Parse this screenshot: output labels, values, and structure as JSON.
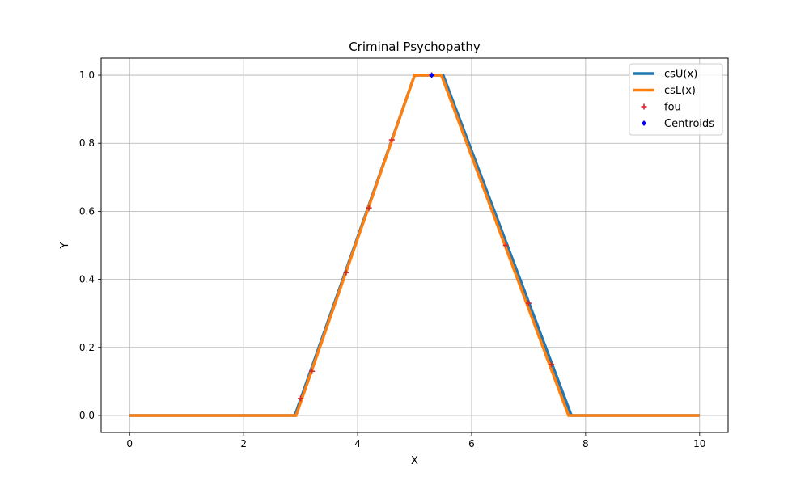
{
  "chart_data": {
    "type": "line",
    "title": "Criminal Psychopathy",
    "xlabel": "X",
    "ylabel": "Y",
    "xlim": [
      -0.5,
      10.5
    ],
    "ylim": [
      -0.05,
      1.05
    ],
    "xticks": [
      0,
      2,
      4,
      6,
      8,
      10
    ],
    "xtick_labels": [
      "0",
      "2",
      "4",
      "6",
      "8",
      "10"
    ],
    "yticks": [
      0.0,
      0.2,
      0.4,
      0.6,
      0.8,
      1.0
    ],
    "ytick_labels": [
      "0.0",
      "0.2",
      "0.4",
      "0.6",
      "0.8",
      "1.0"
    ],
    "grid": true,
    "legend_position": "top-right",
    "series": [
      {
        "name": "csU(x)",
        "kind": "line",
        "color": "#1f77b4",
        "x": [
          0,
          2.9,
          5.0,
          5.5,
          7.75,
          10
        ],
        "y": [
          0,
          0,
          1,
          1,
          0,
          0
        ]
      },
      {
        "name": "csL(x)",
        "kind": "line",
        "color": "#ff7f0e",
        "x": [
          0,
          2.92,
          5.0,
          5.47,
          7.7,
          10
        ],
        "y": [
          0,
          0,
          1,
          1,
          0,
          0
        ]
      },
      {
        "name": "fou",
        "kind": "scatter",
        "marker": "plus",
        "color": "#d62728",
        "x": [
          3.0,
          3.2,
          3.8,
          4.2,
          4.6,
          5.3,
          6.6,
          7.0,
          7.4
        ],
        "y": [
          0.05,
          0.13,
          0.42,
          0.61,
          0.81,
          1.0,
          0.5,
          0.33,
          0.15
        ]
      },
      {
        "name": "Centroids",
        "kind": "scatter",
        "marker": "diamond",
        "color": "#0000ff",
        "x": [
          5.3
        ],
        "y": [
          1.0
        ]
      }
    ]
  }
}
